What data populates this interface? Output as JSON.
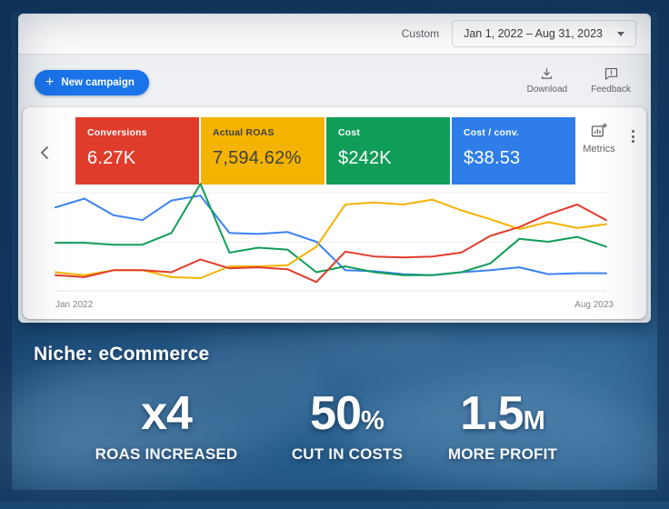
{
  "date_bar": {
    "custom_label": "Custom",
    "date_range": "Jan 1, 2022 – Aug 31, 2023"
  },
  "toolbar": {
    "new_campaign": "New campaign",
    "plus": "+",
    "download": "Download",
    "feedback": "Feedback"
  },
  "scorecards": [
    {
      "label": "Conversions",
      "value": "6.27K",
      "color": "#e03c2c",
      "text_color": "#ffffff"
    },
    {
      "label": "Actual ROAS",
      "value": "7,594.62%",
      "color": "#f5b301",
      "text_color": "#3c4043"
    },
    {
      "label": "Cost",
      "value": "$242K",
      "color": "#109d58",
      "text_color": "#ffffff"
    },
    {
      "label": "Cost / conv.",
      "value": "$38.53",
      "color": "#2e7de9",
      "text_color": "#ffffff"
    }
  ],
  "metrics_button": {
    "label": "Metrics"
  },
  "chart_data": {
    "type": "line",
    "x_start_label": "Jan 2022",
    "x_end_label": "Aug 2023",
    "months": 20,
    "ylim": [
      0,
      110
    ],
    "gridlines": [
      0,
      50,
      100
    ],
    "legend_position": "none",
    "series": [
      {
        "name": "Cost / conv.",
        "color": "#3b82f0",
        "values": [
          85,
          94,
          77,
          72,
          92,
          97,
          59,
          58,
          60,
          50,
          21,
          20,
          17,
          16,
          19,
          21,
          24,
          17,
          18,
          18
        ]
      },
      {
        "name": "Cost",
        "color": "#109d58",
        "values": [
          49,
          49,
          47,
          47,
          59,
          109,
          39,
          44,
          42,
          19,
          25,
          19,
          16,
          16,
          19,
          28,
          53,
          50,
          55,
          45
        ]
      },
      {
        "name": "Actual ROAS",
        "color": "#f5b301",
        "values": [
          19,
          16,
          21,
          21,
          14,
          13,
          25,
          25,
          26,
          45,
          88,
          90,
          88,
          93,
          82,
          73,
          63,
          70,
          64,
          68
        ]
      },
      {
        "name": "Conversions",
        "color": "#e03c2c",
        "values": [
          16,
          14,
          21,
          21,
          19,
          32,
          23,
          24,
          22,
          9,
          40,
          35,
          34,
          35,
          39,
          56,
          65,
          78,
          88,
          72
        ]
      }
    ]
  },
  "overlay": {
    "niche": "Niche: eCommerce",
    "stats": [
      {
        "value": "x4",
        "suffix": "",
        "label": "ROAS INCREASED"
      },
      {
        "value": "50",
        "suffix": "%",
        "label": "CUT IN COSTS"
      },
      {
        "value": "1.5",
        "suffix": "M",
        "label": "MORE PROFIT"
      }
    ]
  }
}
